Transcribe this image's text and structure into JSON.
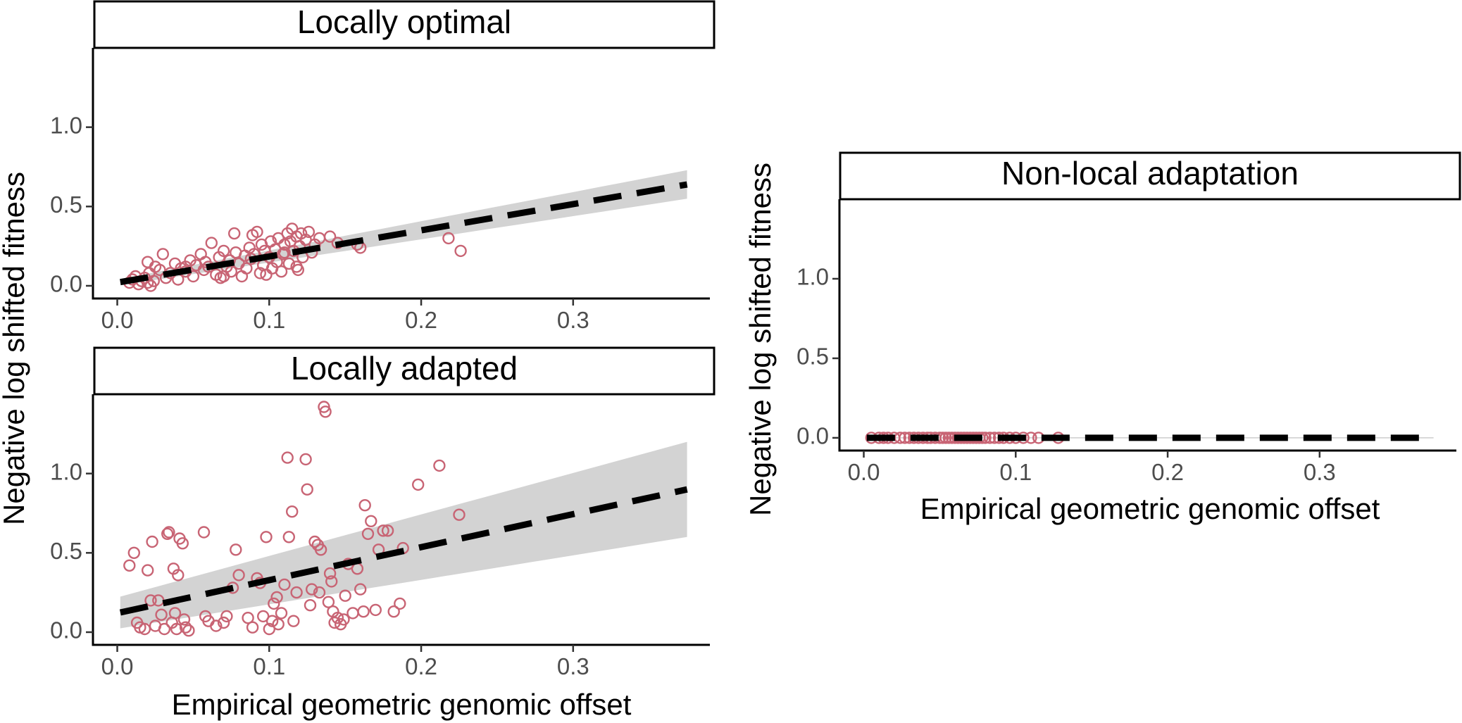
{
  "figure": {
    "xlabel": "Empirical geometric genomic offset",
    "ylabel": "Negative log shifted fitness"
  },
  "colors": {
    "points": "#c86474",
    "fit": "#000000",
    "band": "#d3d3d3"
  },
  "chart_data": [
    {
      "type": "scatter",
      "title": "Locally optimal",
      "xlabel": "",
      "ylabel": "",
      "xlim": [
        -0.016,
        0.39
      ],
      "ylim": [
        -0.08,
        1.5
      ],
      "xticks": [
        0.0,
        0.1,
        0.2,
        0.3
      ],
      "yticks": [
        0.0,
        0.5,
        1.0
      ],
      "x_tick_labels": [
        "0.0",
        "0.1",
        "0.2",
        "0.3"
      ],
      "y_tick_labels": [
        "0.0",
        "0.5",
        "1.0"
      ],
      "points": [
        [
          0.008,
          0.02
        ],
        [
          0.01,
          0.04
        ],
        [
          0.012,
          0.06
        ],
        [
          0.014,
          0.01
        ],
        [
          0.016,
          0.03
        ],
        [
          0.018,
          0.05
        ],
        [
          0.02,
          0.02
        ],
        [
          0.021,
          0.08
        ],
        [
          0.022,
          0.0
        ],
        [
          0.024,
          0.03
        ],
        [
          0.025,
          0.12
        ],
        [
          0.02,
          0.15
        ],
        [
          0.028,
          0.1
        ],
        [
          0.03,
          0.2
        ],
        [
          0.032,
          0.05
        ],
        [
          0.035,
          0.08
        ],
        [
          0.038,
          0.14
        ],
        [
          0.04,
          0.04
        ],
        [
          0.042,
          0.11
        ],
        [
          0.045,
          0.09
        ],
        [
          0.048,
          0.16
        ],
        [
          0.05,
          0.06
        ],
        [
          0.052,
          0.13
        ],
        [
          0.055,
          0.2
        ],
        [
          0.057,
          0.1
        ],
        [
          0.058,
          0.15
        ],
        [
          0.06,
          0.12
        ],
        [
          0.062,
          0.27
        ],
        [
          0.065,
          0.07
        ],
        [
          0.067,
          0.18
        ],
        [
          0.068,
          0.05
        ],
        [
          0.07,
          0.22
        ],
        [
          0.072,
          0.12
        ],
        [
          0.074,
          0.16
        ],
        [
          0.075,
          0.09
        ],
        [
          0.077,
          0.33
        ],
        [
          0.078,
          0.21
        ],
        [
          0.08,
          0.14
        ],
        [
          0.082,
          0.06
        ],
        [
          0.084,
          0.19
        ],
        [
          0.085,
          0.11
        ],
        [
          0.087,
          0.24
        ],
        [
          0.088,
          0.17
        ],
        [
          0.089,
          0.32
        ],
        [
          0.09,
          0.2
        ],
        [
          0.092,
          0.34
        ],
        [
          0.094,
          0.08
        ],
        [
          0.095,
          0.26
        ],
        [
          0.096,
          0.13
        ],
        [
          0.097,
          0.22
        ],
        [
          0.098,
          0.07
        ],
        [
          0.1,
          0.18
        ],
        [
          0.101,
          0.28
        ],
        [
          0.102,
          0.11
        ],
        [
          0.104,
          0.23
        ],
        [
          0.105,
          0.15
        ],
        [
          0.106,
          0.3
        ],
        [
          0.108,
          0.09
        ],
        [
          0.109,
          0.2
        ],
        [
          0.11,
          0.26
        ],
        [
          0.112,
          0.33
        ],
        [
          0.113,
          0.14
        ],
        [
          0.114,
          0.28
        ],
        [
          0.115,
          0.36
        ],
        [
          0.116,
          0.22
        ],
        [
          0.118,
          0.31
        ],
        [
          0.119,
          0.1
        ],
        [
          0.12,
          0.25
        ],
        [
          0.121,
          0.33
        ],
        [
          0.122,
          0.18
        ],
        [
          0.124,
          0.29
        ],
        [
          0.126,
          0.34
        ],
        [
          0.128,
          0.21
        ],
        [
          0.13,
          0.26
        ],
        [
          0.133,
          0.3
        ],
        [
          0.14,
          0.31
        ],
        [
          0.145,
          0.27
        ],
        [
          0.158,
          0.26
        ],
        [
          0.16,
          0.24
        ],
        [
          0.218,
          0.3
        ],
        [
          0.226,
          0.22
        ],
        [
          0.118,
          0.12
        ],
        [
          0.07,
          0.06
        ],
        [
          0.045,
          0.12
        ],
        [
          0.11,
          0.21
        ]
      ],
      "fit": {
        "intercept": 0.02,
        "slope": 1.65,
        "x_range": [
          0.002,
          0.375
        ]
      },
      "band": {
        "half_width_at_start": 0.02,
        "half_width_at_end": 0.09
      }
    },
    {
      "type": "scatter",
      "title": "Locally adapted",
      "xlabel": "",
      "ylabel": "",
      "xlim": [
        -0.016,
        0.39
      ],
      "ylim": [
        -0.08,
        1.5
      ],
      "xticks": [
        0.0,
        0.1,
        0.2,
        0.3
      ],
      "yticks": [
        0.0,
        0.5,
        1.0
      ],
      "x_tick_labels": [
        "0.0",
        "0.1",
        "0.2",
        "0.3"
      ],
      "y_tick_labels": [
        "0.0",
        "0.5",
        "1.0"
      ],
      "points": [
        [
          0.008,
          0.42
        ],
        [
          0.011,
          0.5
        ],
        [
          0.013,
          0.06
        ],
        [
          0.015,
          0.03
        ],
        [
          0.018,
          0.02
        ],
        [
          0.02,
          0.39
        ],
        [
          0.022,
          0.2
        ],
        [
          0.023,
          0.57
        ],
        [
          0.025,
          0.04
        ],
        [
          0.027,
          0.2
        ],
        [
          0.029,
          0.11
        ],
        [
          0.031,
          0.02
        ],
        [
          0.033,
          0.62
        ],
        [
          0.034,
          0.63
        ],
        [
          0.036,
          0.06
        ],
        [
          0.037,
          0.4
        ],
        [
          0.038,
          0.12
        ],
        [
          0.039,
          0.02
        ],
        [
          0.04,
          0.36
        ],
        [
          0.041,
          0.59
        ],
        [
          0.043,
          0.56
        ],
        [
          0.044,
          0.08
        ],
        [
          0.045,
          0.03
        ],
        [
          0.047,
          0.01
        ],
        [
          0.057,
          0.63
        ],
        [
          0.058,
          0.1
        ],
        [
          0.06,
          0.07
        ],
        [
          0.065,
          0.04
        ],
        [
          0.07,
          0.06
        ],
        [
          0.072,
          0.1
        ],
        [
          0.076,
          0.28
        ],
        [
          0.078,
          0.52
        ],
        [
          0.08,
          0.36
        ],
        [
          0.086,
          0.09
        ],
        [
          0.089,
          0.03
        ],
        [
          0.092,
          0.34
        ],
        [
          0.094,
          0.31
        ],
        [
          0.096,
          0.1
        ],
        [
          0.098,
          0.6
        ],
        [
          0.1,
          0.02
        ],
        [
          0.102,
          0.07
        ],
        [
          0.103,
          0.18
        ],
        [
          0.105,
          0.22
        ],
        [
          0.106,
          0.05
        ],
        [
          0.108,
          0.12
        ],
        [
          0.11,
          0.3
        ],
        [
          0.112,
          1.1
        ],
        [
          0.113,
          0.6
        ],
        [
          0.115,
          0.76
        ],
        [
          0.116,
          0.07
        ],
        [
          0.118,
          0.25
        ],
        [
          0.124,
          1.09
        ],
        [
          0.125,
          0.9
        ],
        [
          0.127,
          0.17
        ],
        [
          0.128,
          0.27
        ],
        [
          0.13,
          0.57
        ],
        [
          0.132,
          0.55
        ],
        [
          0.133,
          0.25
        ],
        [
          0.134,
          0.52
        ],
        [
          0.136,
          1.42
        ],
        [
          0.137,
          1.39
        ],
        [
          0.139,
          0.19
        ],
        [
          0.14,
          0.37
        ],
        [
          0.141,
          0.32
        ],
        [
          0.142,
          0.13
        ],
        [
          0.143,
          0.06
        ],
        [
          0.145,
          0.09
        ],
        [
          0.147,
          0.05
        ],
        [
          0.149,
          0.08
        ],
        [
          0.15,
          0.23
        ],
        [
          0.152,
          0.43
        ],
        [
          0.155,
          0.12
        ],
        [
          0.158,
          0.4
        ],
        [
          0.16,
          0.27
        ],
        [
          0.162,
          0.13
        ],
        [
          0.163,
          0.8
        ],
        [
          0.165,
          0.62
        ],
        [
          0.167,
          0.7
        ],
        [
          0.17,
          0.14
        ],
        [
          0.172,
          0.52
        ],
        [
          0.175,
          0.64
        ],
        [
          0.178,
          0.64
        ],
        [
          0.182,
          0.13
        ],
        [
          0.186,
          0.18
        ],
        [
          0.188,
          0.53
        ],
        [
          0.198,
          0.93
        ],
        [
          0.212,
          1.05
        ],
        [
          0.225,
          0.74
        ]
      ],
      "fit": {
        "intercept": 0.12,
        "slope": 2.08,
        "x_range": [
          0.002,
          0.375
        ]
      },
      "band": {
        "half_width_at_start": 0.1,
        "half_width_at_end": 0.3
      }
    },
    {
      "type": "scatter",
      "title": "Non-local adaptation",
      "xlabel": "Empirical geometric genomic offset",
      "ylabel": "Negative log shifted fitness",
      "xlim": [
        -0.016,
        0.39
      ],
      "ylim": [
        -0.08,
        1.5
      ],
      "xticks": [
        0.0,
        0.1,
        0.2,
        0.3
      ],
      "yticks": [
        0.0,
        0.5,
        1.0
      ],
      "x_tick_labels": [
        "0.0",
        "0.1",
        "0.2",
        "0.3"
      ],
      "y_tick_labels": [
        "0.0",
        "0.5",
        "1.0"
      ],
      "points": [
        [
          0.005,
          0.0
        ],
        [
          0.01,
          0.0
        ],
        [
          0.013,
          0.0
        ],
        [
          0.016,
          0.0
        ],
        [
          0.02,
          0.0
        ],
        [
          0.024,
          0.0
        ],
        [
          0.027,
          0.0
        ],
        [
          0.03,
          0.0
        ],
        [
          0.033,
          0.0
        ],
        [
          0.036,
          0.0
        ],
        [
          0.039,
          0.0
        ],
        [
          0.042,
          0.0
        ],
        [
          0.044,
          0.0
        ],
        [
          0.047,
          0.0
        ],
        [
          0.05,
          0.0
        ],
        [
          0.052,
          0.0
        ],
        [
          0.054,
          0.0
        ],
        [
          0.056,
          0.0
        ],
        [
          0.058,
          0.0
        ],
        [
          0.06,
          0.0
        ],
        [
          0.062,
          0.0
        ],
        [
          0.064,
          0.0
        ],
        [
          0.066,
          0.0
        ],
        [
          0.068,
          0.0
        ],
        [
          0.07,
          0.0
        ],
        [
          0.072,
          0.0
        ],
        [
          0.074,
          0.0
        ],
        [
          0.076,
          0.0
        ],
        [
          0.078,
          0.0
        ],
        [
          0.08,
          0.0
        ],
        [
          0.083,
          0.0
        ],
        [
          0.086,
          0.0
        ],
        [
          0.089,
          0.0
        ],
        [
          0.092,
          0.0
        ],
        [
          0.096,
          0.0
        ],
        [
          0.1,
          0.0
        ],
        [
          0.105,
          0.0
        ],
        [
          0.11,
          0.0
        ],
        [
          0.115,
          0.0
        ],
        [
          0.128,
          0.0
        ]
      ],
      "fit": {
        "intercept": 0.0,
        "slope": 0.0,
        "x_range": [
          0.002,
          0.375
        ]
      },
      "band": {
        "half_width_at_start": 0.004,
        "half_width_at_end": 0.004
      }
    }
  ]
}
